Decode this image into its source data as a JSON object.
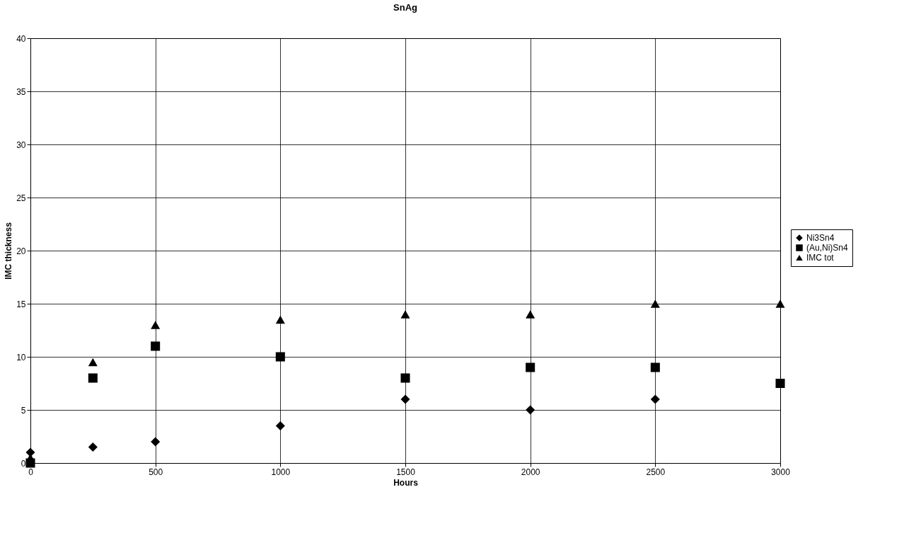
{
  "chart_data": {
    "type": "scatter",
    "title": "SnAg",
    "xlabel": "Hours",
    "ylabel": "IMC thickness",
    "xlim": [
      0,
      3000
    ],
    "xticks": [
      0,
      500,
      1000,
      1500,
      2000,
      2500,
      3000
    ],
    "ylim": [
      0,
      40
    ],
    "yticks": [
      0,
      5,
      10,
      15,
      20,
      25,
      30,
      35,
      40
    ],
    "grid": true,
    "legend": "right",
    "series": [
      {
        "name": "Ni3Sn4",
        "color": "#000000",
        "marker": "diamond",
        "x": [
          0,
          250,
          500,
          1000,
          1500,
          2000,
          2500
        ],
        "values": [
          1,
          1.5,
          2,
          3.5,
          6,
          5,
          6
        ]
      },
      {
        "name": "(Au,Ni)Sn4",
        "color": "#000000",
        "marker": "square",
        "x": [
          0,
          250,
          500,
          1000,
          1500,
          2000,
          2500,
          3000
        ],
        "values": [
          0,
          8,
          11,
          10,
          8,
          9,
          9,
          7.5
        ]
      },
      {
        "name": "IMC tot",
        "color": "#000000",
        "marker": "triangle",
        "x": [
          0,
          250,
          500,
          1000,
          1500,
          2000,
          2500,
          3000
        ],
        "values": [
          0.5,
          9.5,
          13,
          13.5,
          14,
          14,
          15,
          15
        ]
      }
    ]
  }
}
